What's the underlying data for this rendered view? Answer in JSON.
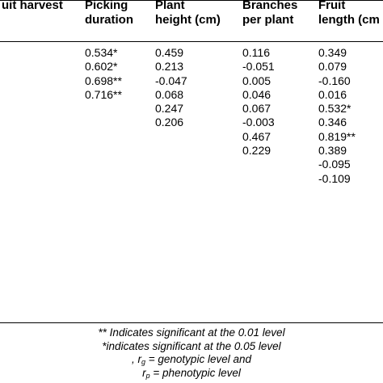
{
  "table": {
    "headers": [
      {
        "line1": "uit harvest",
        "line2": ""
      },
      {
        "line1": "Picking",
        "line2": "duration"
      },
      {
        "line1": "Plant",
        "line2": "height (cm)"
      },
      {
        "line1": "Branches",
        "line2": "per plant"
      },
      {
        "line1": "Fruit",
        "line2": "length (cm"
      }
    ],
    "columns": [
      [],
      [
        "0.534*",
        "0.602*",
        "0.698**",
        "0.716**"
      ],
      [
        "0.459",
        "0.213",
        "-0.047",
        "0.068",
        "0.247",
        "0.206"
      ],
      [
        "0.116",
        "-0.051",
        "0.005",
        "0.046",
        "0.067",
        "-0.003",
        "0.467",
        "0.229"
      ],
      [
        "0.349",
        "0.079",
        "-0.160",
        "0.016",
        "0.532*",
        "0.346",
        "0.819**",
        "0.389",
        "-0.095",
        "-0.109"
      ]
    ]
  },
  "notes": {
    "line1": "** Indicates significant at the 0.01 level",
    "line2": "*indicates significant at the 0.05 level",
    "line3_prefix": ", r",
    "line3_sub": "g",
    "line3_suffix": " = genotypic level and",
    "line4_prefix": "r",
    "line4_sub": "p",
    "line4_suffix": " = phenotypic level"
  }
}
